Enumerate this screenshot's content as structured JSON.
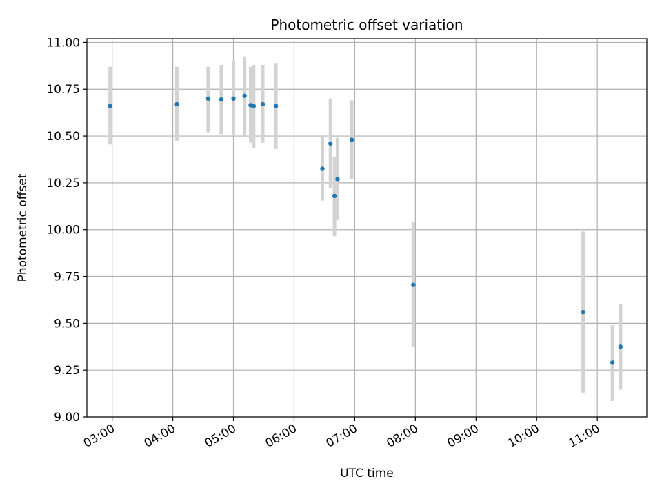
{
  "chart_data": {
    "type": "scatter",
    "title": "Photometric offset variation",
    "xlabel": "UTC time",
    "ylabel": "Photometric offset",
    "x_tick_labels": [
      "03:00",
      "04:00",
      "05:00",
      "06:00",
      "07:00",
      "08:00",
      "09:00",
      "10:00",
      "11:00"
    ],
    "y_tick_labels": [
      "9.00",
      "9.25",
      "9.50",
      "9.75",
      "10.00",
      "10.25",
      "10.50",
      "10.75",
      "11.00"
    ],
    "xlim": [
      "02:35",
      "11:49"
    ],
    "ylim": [
      9.0,
      11.02
    ],
    "grid": true,
    "point_color": "#1f77b4",
    "errorbar_color": "#d3d3d3",
    "points": [
      {
        "x": "02:58",
        "y": 10.66,
        "yerr_low": 10.455,
        "yerr_high": 10.87
      },
      {
        "x": "04:04",
        "y": 10.67,
        "yerr_low": 10.475,
        "yerr_high": 10.87
      },
      {
        "x": "04:35",
        "y": 10.7,
        "yerr_low": 10.52,
        "yerr_high": 10.87
      },
      {
        "x": "04:48",
        "y": 10.695,
        "yerr_low": 10.51,
        "yerr_high": 10.88
      },
      {
        "x": "05:00",
        "y": 10.7,
        "yerr_low": 10.5,
        "yerr_high": 10.9
      },
      {
        "x": "05:11",
        "y": 10.715,
        "yerr_low": 10.5,
        "yerr_high": 10.925
      },
      {
        "x": "05:17",
        "y": 10.665,
        "yerr_low": 10.465,
        "yerr_high": 10.87
      },
      {
        "x": "05:20",
        "y": 10.66,
        "yerr_low": 10.435,
        "yerr_high": 10.88
      },
      {
        "x": "05:29",
        "y": 10.67,
        "yerr_low": 10.465,
        "yerr_high": 10.88
      },
      {
        "x": "05:42",
        "y": 10.66,
        "yerr_low": 10.43,
        "yerr_high": 10.89
      },
      {
        "x": "06:28",
        "y": 10.325,
        "yerr_low": 10.155,
        "yerr_high": 10.5
      },
      {
        "x": "06:36",
        "y": 10.46,
        "yerr_low": 10.22,
        "yerr_high": 10.7
      },
      {
        "x": "06:40",
        "y": 10.18,
        "yerr_low": 9.965,
        "yerr_high": 10.39
      },
      {
        "x": "06:43",
        "y": 10.27,
        "yerr_low": 10.05,
        "yerr_high": 10.49
      },
      {
        "x": "06:57",
        "y": 10.48,
        "yerr_low": 10.27,
        "yerr_high": 10.69
      },
      {
        "x": "07:58",
        "y": 9.705,
        "yerr_low": 9.375,
        "yerr_high": 10.04
      },
      {
        "x": "10:46",
        "y": 9.56,
        "yerr_low": 9.13,
        "yerr_high": 9.99
      },
      {
        "x": "11:15",
        "y": 9.29,
        "yerr_low": 9.085,
        "yerr_high": 9.49
      },
      {
        "x": "11:23",
        "y": 9.375,
        "yerr_low": 9.145,
        "yerr_high": 9.605
      }
    ]
  }
}
